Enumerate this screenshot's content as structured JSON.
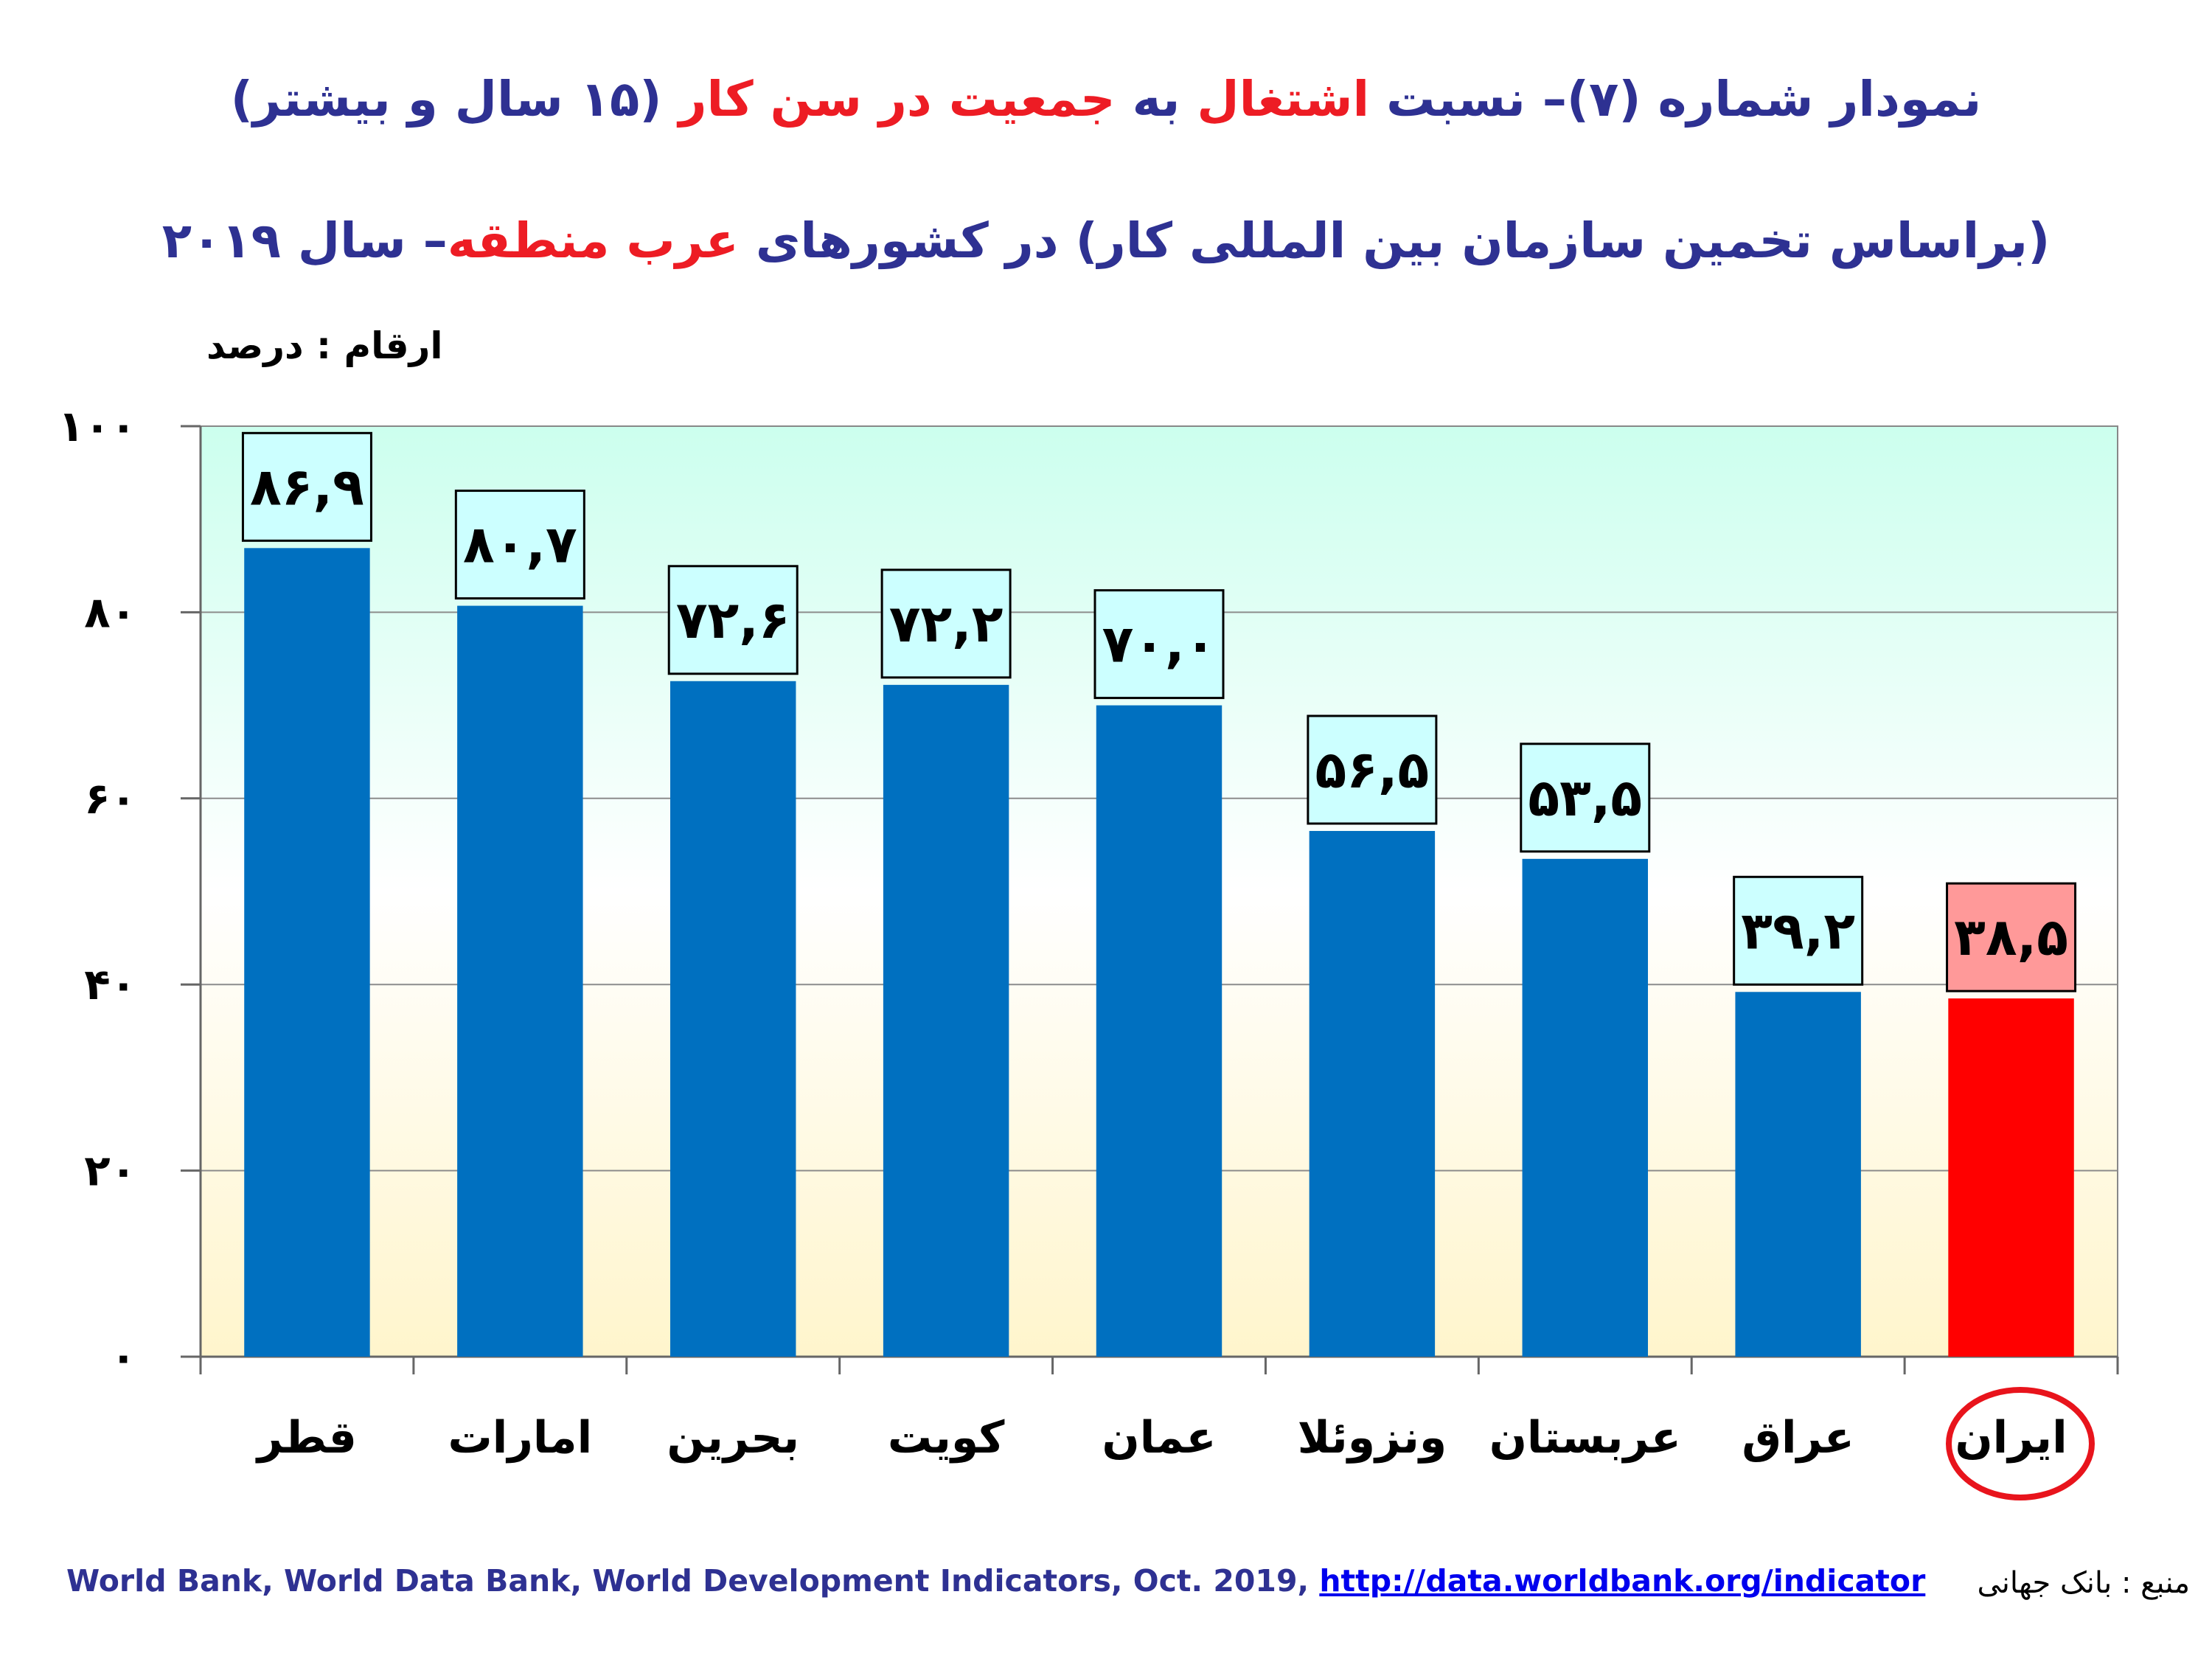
{
  "title": {
    "line1_p1": "نمودار شماره (۷)– نسبت ",
    "line1_p2": "اشتغال",
    "line1_p3": " به ",
    "line1_p4": "جمعیت در سن کار",
    "line1_p5": " (۱۵ سال و بیشتر)",
    "line2_p1": "(براساس تخمین سازمان بین المللی کار) در کشورهای ",
    "line2_p2": "عرب منطقه",
    "line2_p3": "– سال ۲۰۱۹"
  },
  "unit_label": "ارقام : درصد",
  "source": {
    "text": "World Bank, World Data Bank, World Development Indicators, Oct. 2019, ",
    "link": "http://data.worldbank.org/indicator",
    "persian": "منبع : بانک جهانی"
  },
  "colors": {
    "bar": "#0070C0",
    "highlight_bar": "#FF0000",
    "label_box": "#CCFFFF",
    "highlight_label_box": "#FF9999",
    "plot_top": "#CCFFEE",
    "plot_bottom": "#FFF5CC",
    "title": "#2E3192",
    "title_accent": "#ED1C24"
  },
  "chart_data": {
    "type": "bar",
    "categories": [
      "قطر",
      "امارات",
      "بحرین",
      "کویت",
      "عمان",
      "ونزوئلا",
      "عربستان",
      "عراق",
      "ایران"
    ],
    "values": [
      86.9,
      80.7,
      72.6,
      72.2,
      70.0,
      56.5,
      53.5,
      39.2,
      38.5
    ],
    "value_labels": [
      "۸۶,۹",
      "۸۰,۷",
      "۷۲,۶",
      "۷۲,۲",
      "۷۰,۰",
      "۵۶,۵",
      "۵۳,۵",
      "۳۹,۲",
      "۳۸,۵"
    ],
    "highlight_index": 8,
    "ylim": [
      0,
      100
    ],
    "yticks": [
      0,
      20,
      40,
      60,
      80,
      100
    ],
    "ytick_labels": [
      "۰",
      "۲۰",
      "۴۰",
      "۶۰",
      "۸۰",
      "۱۰۰"
    ],
    "grid": true,
    "xlabel": "",
    "ylabel": ""
  }
}
